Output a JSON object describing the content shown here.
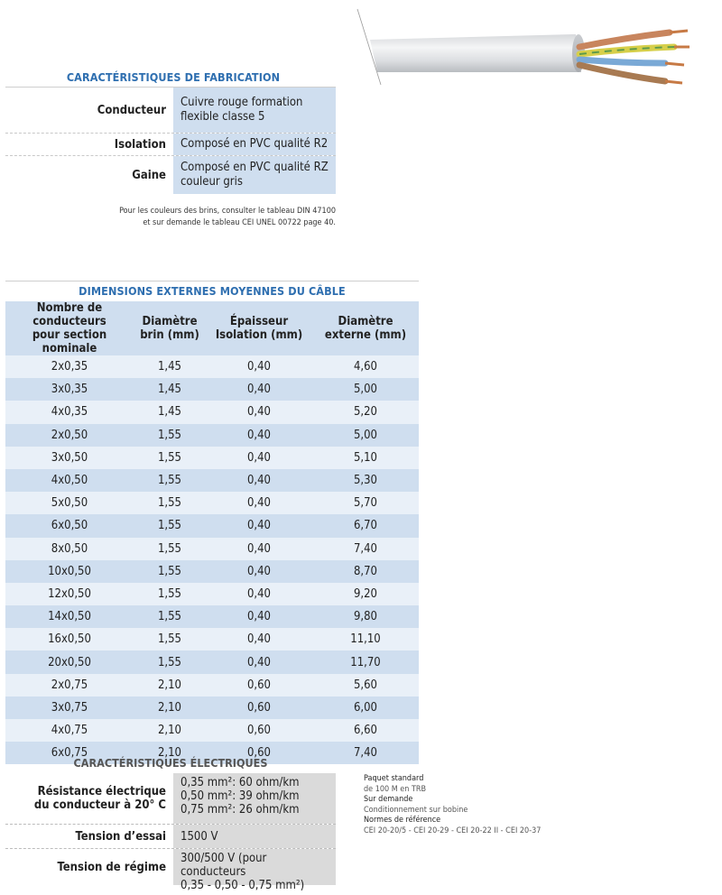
{
  "fabrication": {
    "title": "CARACTÉRISTIQUES DE FABRICATION",
    "rows": [
      {
        "label": "Conducteur",
        "value": "Cuivre rouge formation flexible classe 5"
      },
      {
        "label": "Isolation",
        "value": "Composé en PVC qualité R2"
      },
      {
        "label": "Gaine",
        "value": "Composé en PVC qualité RZ couleur gris"
      }
    ],
    "note_line1": "Pour les couleurs des brins, consulter le tableau DIN 47100",
    "note_line2": "et sur demande le tableau CEI UNEL 00722 page 40."
  },
  "dimensions": {
    "title": "DIMENSIONS EXTERNES MOYENNES DU CÂBLE",
    "headers": [
      {
        "line1": "Nombre de conducteurs",
        "line2": "pour section nominale"
      },
      {
        "line1": "Diamètre",
        "line2": "brin (mm)"
      },
      {
        "line1": "Épaisseur",
        "line2": "Isolation (mm)"
      },
      {
        "line1": "Diamètre",
        "line2": "externe (mm)"
      }
    ],
    "rows": [
      [
        "2x0,35",
        "1,45",
        "0,40",
        "4,60"
      ],
      [
        "3x0,35",
        "1,45",
        "0,40",
        "5,00"
      ],
      [
        "4x0,35",
        "1,45",
        "0,40",
        "5,20"
      ],
      [
        "2x0,50",
        "1,55",
        "0,40",
        "5,00"
      ],
      [
        "3x0,50",
        "1,55",
        "0,40",
        "5,10"
      ],
      [
        "4x0,50",
        "1,55",
        "0,40",
        "5,30"
      ],
      [
        "5x0,50",
        "1,55",
        "0,40",
        "5,70"
      ],
      [
        "6x0,50",
        "1,55",
        "0,40",
        "6,70"
      ],
      [
        "8x0,50",
        "1,55",
        "0,40",
        "7,40"
      ],
      [
        "10x0,50",
        "1,55",
        "0,40",
        "8,70"
      ],
      [
        "12x0,50",
        "1,55",
        "0,40",
        "9,20"
      ],
      [
        "14x0,50",
        "1,55",
        "0,40",
        "9,80"
      ],
      [
        "16x0,50",
        "1,55",
        "0,40",
        "11,10"
      ],
      [
        "20x0,50",
        "1,55",
        "0,40",
        "11,70"
      ],
      [
        "2x0,75",
        "2,10",
        "0,60",
        "5,60"
      ],
      [
        "3x0,75",
        "2,10",
        "0,60",
        "6,00"
      ],
      [
        "4x0,75",
        "2,10",
        "0,60",
        "6,60"
      ],
      [
        "6x0,75",
        "2,10",
        "0,60",
        "7,40"
      ]
    ]
  },
  "electrical": {
    "title": "CARACTÉRISTIQUES ÉLECTRIQUES",
    "rows": [
      {
        "label_lines": [
          "Résistance électrique",
          "du conducteur à 20° C"
        ],
        "value_lines": [
          "0,35 mm²: 60 ohm/km",
          "0,50 mm²: 39 ohm/km",
          "0,75 mm²: 26 ohm/km"
        ]
      },
      {
        "label_lines": [
          "Tension d’essai"
        ],
        "value_lines": [
          "1500 V"
        ]
      },
      {
        "label_lines": [
          "Tension de régime"
        ],
        "value_lines": [
          "300/500 V (pour conducteurs",
          "0,35 - 0,50 - 0,75 mm²)"
        ]
      }
    ]
  },
  "side_info": [
    {
      "kind": "head",
      "text": "Paquet standard"
    },
    {
      "kind": "text",
      "text": "de 100 M en TRB"
    },
    {
      "kind": "head",
      "text": "Sur demande"
    },
    {
      "kind": "text",
      "text": "Conditionnement sur bobine"
    },
    {
      "kind": "head",
      "text": "Normes de référence"
    },
    {
      "kind": "text",
      "text": "CEI 20-20/5 - CEI 20-29 - CEI 20-22 II - CEI 20-37"
    }
  ],
  "colors": {
    "accent_blue": "#2f6fb0",
    "cell_blue": "#cfdeef",
    "cell_light_blue": "#e9f0f8",
    "cell_grey": "#dadada"
  },
  "icons": {
    "cable_image": "multi-core-cable-illustration"
  }
}
